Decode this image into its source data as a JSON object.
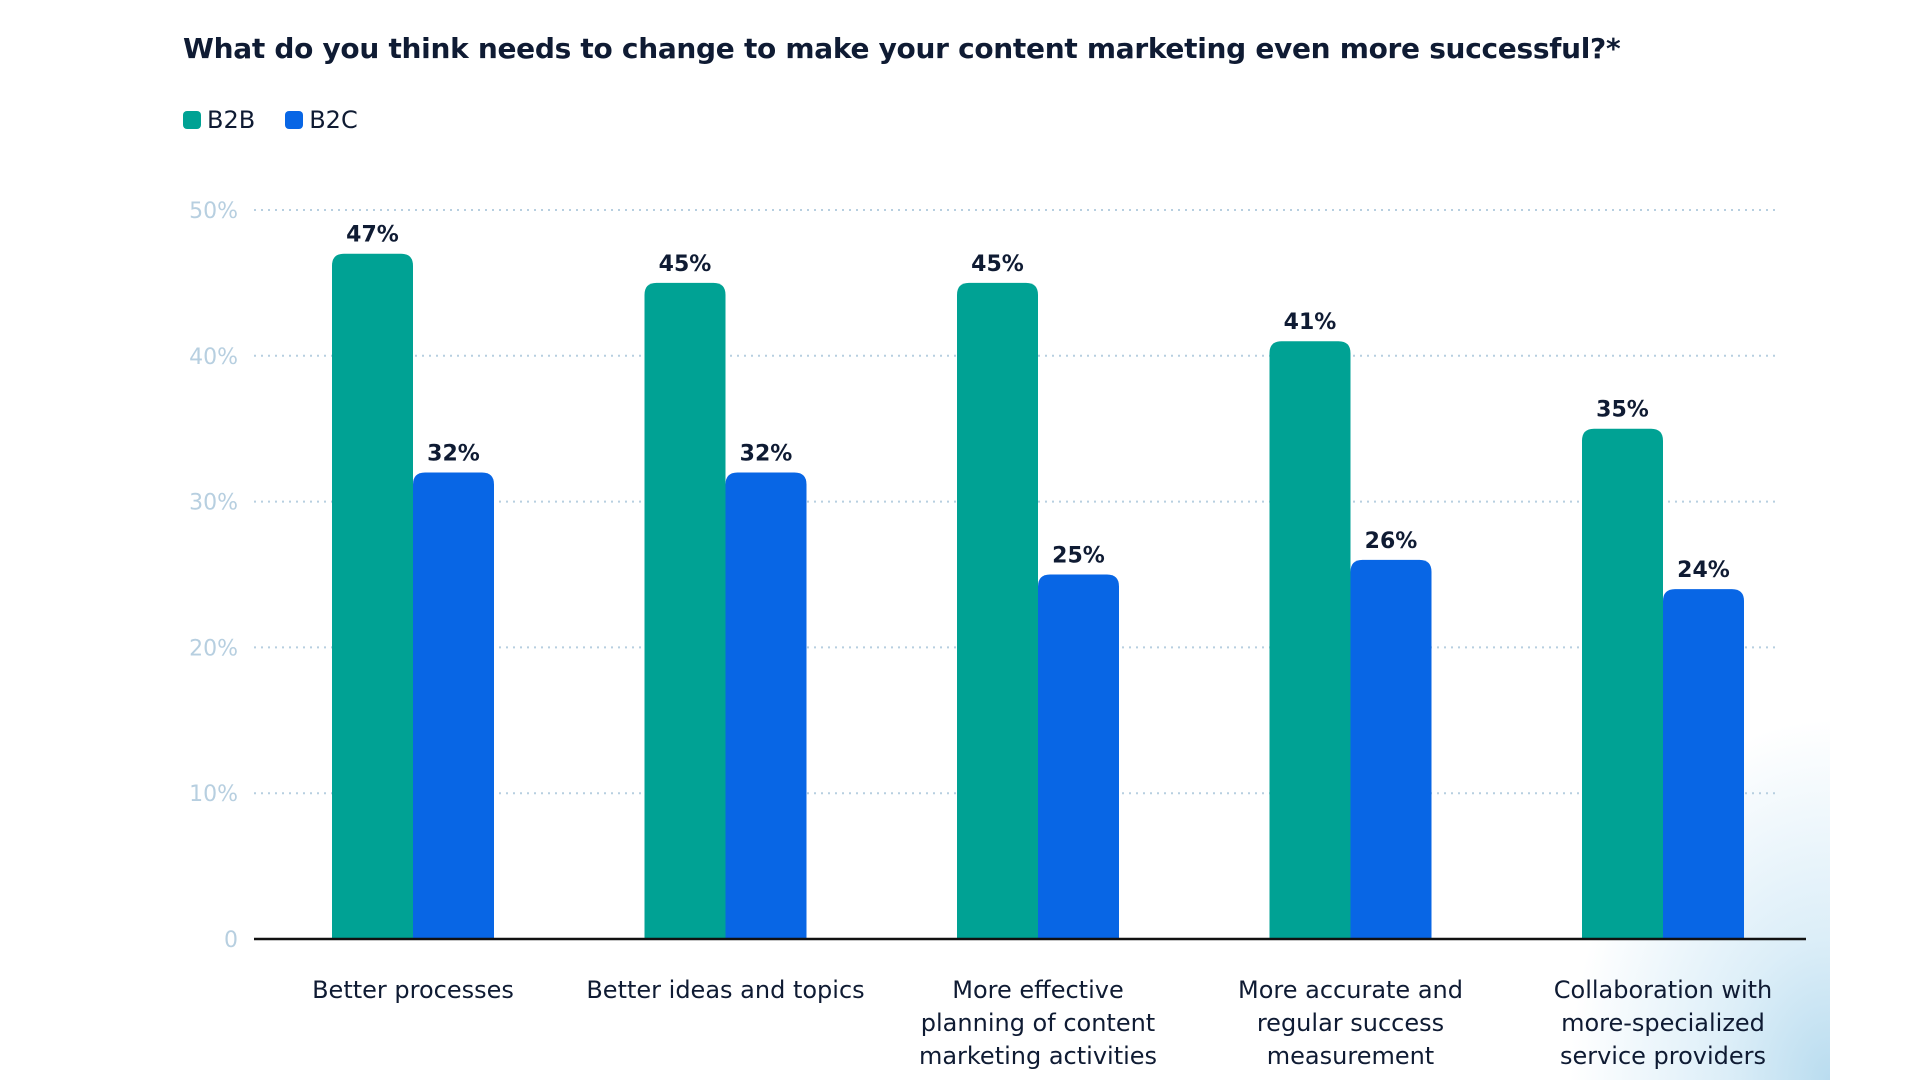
{
  "chart_data": {
    "type": "bar",
    "title": "What do you think needs to change to make your content marketing even more successful?*",
    "xlabel": "",
    "ylabel": "",
    "ylim": [
      0,
      50
    ],
    "yticks": [
      {
        "value": 0,
        "label": "0"
      },
      {
        "value": 10,
        "label": "10%"
      },
      {
        "value": 20,
        "label": "20%"
      },
      {
        "value": 30,
        "label": "30%"
      },
      {
        "value": 40,
        "label": "40%"
      },
      {
        "value": 50,
        "label": "50%"
      }
    ],
    "grid": true,
    "legend_position": "top-left",
    "categories": [
      [
        "Better processes"
      ],
      [
        "Better ideas and topics"
      ],
      [
        "More effective",
        "planning of content",
        "marketing activities"
      ],
      [
        "More accurate and",
        "regular success",
        "measurement"
      ],
      [
        "Collaboration with",
        "more-specialized",
        "service providers"
      ]
    ],
    "series": [
      {
        "name": "B2B",
        "color": "#00a294",
        "values": [
          47,
          45,
          45,
          41,
          35
        ],
        "labels": [
          "47%",
          "45%",
          "45%",
          "41%",
          "35%"
        ]
      },
      {
        "name": "B2C",
        "color": "#0866e5",
        "values": [
          32,
          32,
          25,
          26,
          24
        ],
        "labels": [
          "32%",
          "32%",
          "25%",
          "26%",
          "24%"
        ]
      }
    ]
  }
}
